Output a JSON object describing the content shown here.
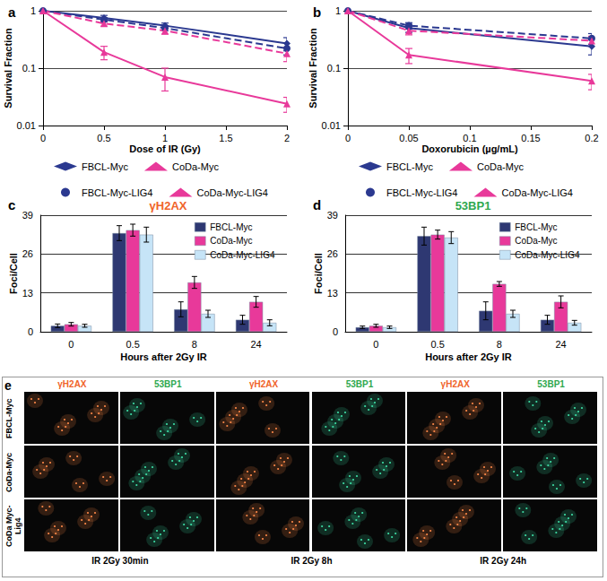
{
  "chart_data": [
    {
      "panel": "a",
      "type": "line",
      "x_label": "Dose of IR (Gy)",
      "y_label": "Survival Fraction",
      "x": [
        0,
        0.5,
        1,
        2
      ],
      "series": [
        {
          "name": "FBCL-Myc",
          "color": "#2b3990",
          "marker": "diamond",
          "line_style": "solid",
          "values": [
            1,
            0.75,
            0.55,
            0.27
          ],
          "errors": [
            0.03,
            0.08,
            0.06,
            0.07
          ]
        },
        {
          "name": "CoDa-Myc",
          "color": "#e8399a",
          "marker": "triangle",
          "line_style": "solid",
          "values": [
            1,
            0.19,
            0.07,
            0.024
          ],
          "errors": [
            0.03,
            0.05,
            0.03,
            0.007
          ]
        },
        {
          "name": "FBCL-Myc-LIG4",
          "color": "#2b3990",
          "marker": "circle",
          "line_style": "dashed",
          "values": [
            1,
            0.7,
            0.5,
            0.22
          ],
          "errors": [
            0.03,
            0.06,
            0.05,
            0.05
          ]
        },
        {
          "name": "CoDa-Myc-LIG4",
          "color": "#e8399a",
          "marker": "triangle",
          "line_style": "dashed",
          "values": [
            1,
            0.6,
            0.45,
            0.18
          ],
          "errors": [
            0.03,
            0.06,
            0.06,
            0.05
          ]
        }
      ],
      "xlim": [
        0,
        2
      ],
      "xticks": [
        0,
        0.5,
        1,
        1.5,
        2
      ],
      "ylim": [
        0.01,
        1
      ],
      "yticks": [
        0.01,
        0.1,
        1
      ],
      "log": "y",
      "grid": true,
      "legend": "bottom"
    },
    {
      "panel": "b",
      "type": "line",
      "x_label": "Doxorubicin (µg/mL)",
      "y_label": "Survival Fraction",
      "x": [
        0,
        0.05,
        0.2
      ],
      "series": [
        {
          "name": "FBCL-Myc",
          "color": "#2b3990",
          "marker": "diamond",
          "line_style": "solid",
          "values": [
            1,
            0.5,
            0.24
          ],
          "errors": [
            0.03,
            0.08,
            0.07
          ]
        },
        {
          "name": "CoDa-Myc",
          "color": "#e8399a",
          "marker": "triangle",
          "line_style": "solid",
          "values": [
            1,
            0.17,
            0.06
          ],
          "errors": [
            0.03,
            0.05,
            0.018
          ]
        },
        {
          "name": "FBCL-Myc-LIG4",
          "color": "#2b3990",
          "marker": "circle",
          "line_style": "dashed",
          "values": [
            1,
            0.55,
            0.33
          ],
          "errors": [
            0.03,
            0.07,
            0.07
          ]
        },
        {
          "name": "CoDa-Myc-LIG4",
          "color": "#e8399a",
          "marker": "triangle",
          "line_style": "dashed",
          "values": [
            1,
            0.45,
            0.3
          ],
          "errors": [
            0.03,
            0.07,
            0.06
          ]
        }
      ],
      "xlim": [
        0,
        0.2
      ],
      "xticks": [
        0,
        0.05,
        0.1,
        0.15,
        0.2
      ],
      "ylim": [
        0.01,
        1
      ],
      "yticks": [
        0.01,
        0.1,
        1
      ],
      "log": "y",
      "grid": true,
      "legend": "bottom"
    },
    {
      "panel": "c",
      "type": "bar",
      "title": "γH2AX",
      "x_label": "Hours after 2Gy IR",
      "y_label": "Foci/Cell",
      "categories": [
        "0",
        "0.5",
        "8",
        "24"
      ],
      "series": [
        {
          "name": "FBCL-Myc",
          "color": "#2e3872",
          "values": [
            2,
            33,
            7.5,
            4
          ],
          "errors": [
            0.6,
            2.5,
            2.5,
            1.5
          ]
        },
        {
          "name": "CoDa-Myc",
          "color": "#e8399a",
          "values": [
            2.5,
            34,
            16.5,
            10
          ],
          "errors": [
            0.6,
            2,
            2,
            1.8
          ]
        },
        {
          "name": "CoDa-Myc-LIG4",
          "color": "#c6e4f7",
          "values": [
            2,
            32.5,
            6,
            3
          ],
          "errors": [
            0.5,
            2.5,
            1.2,
            1
          ]
        }
      ],
      "ylim": [
        0,
        39
      ],
      "yticks": [
        0,
        13,
        26,
        39
      ],
      "grid": true,
      "legend": "top-right"
    },
    {
      "panel": "d",
      "type": "bar",
      "title": "53BP1",
      "x_label": "Hours after 2Gy IR",
      "y_label": "Foci/Cell",
      "categories": [
        "0",
        "0.5",
        "8",
        "24"
      ],
      "series": [
        {
          "name": "FBCL-Myc",
          "color": "#2e3872",
          "values": [
            1.5,
            32,
            7,
            4
          ],
          "errors": [
            0.4,
            3,
            3,
            1.5
          ]
        },
        {
          "name": "CoDa-Myc",
          "color": "#e8399a",
          "values": [
            2,
            32.5,
            16,
            10
          ],
          "errors": [
            0.5,
            1.5,
            0.8,
            2
          ]
        },
        {
          "name": "CoDa-Myc-LIG4",
          "color": "#c6e4f7",
          "values": [
            1.5,
            31.5,
            6,
            3
          ],
          "errors": [
            0.4,
            2,
            1.2,
            0.8
          ]
        }
      ],
      "ylim": [
        0,
        39
      ],
      "yticks": [
        0,
        13,
        26,
        39
      ],
      "grid": true,
      "legend": "top-right"
    }
  ],
  "image_panel": {
    "panel": "e",
    "columns": [
      "γH2AX",
      "53BP1",
      "γH2AX",
      "53BP1",
      "γH2AX",
      "53BP1"
    ],
    "rows": [
      "FBCL-Myc",
      "CoDa-Myc",
      "CoDa Myc-Lig4"
    ],
    "time_labels": [
      "IR 2Gy 30min",
      "IR 2Gy 8h",
      "IR 2Gy 24h"
    ]
  }
}
